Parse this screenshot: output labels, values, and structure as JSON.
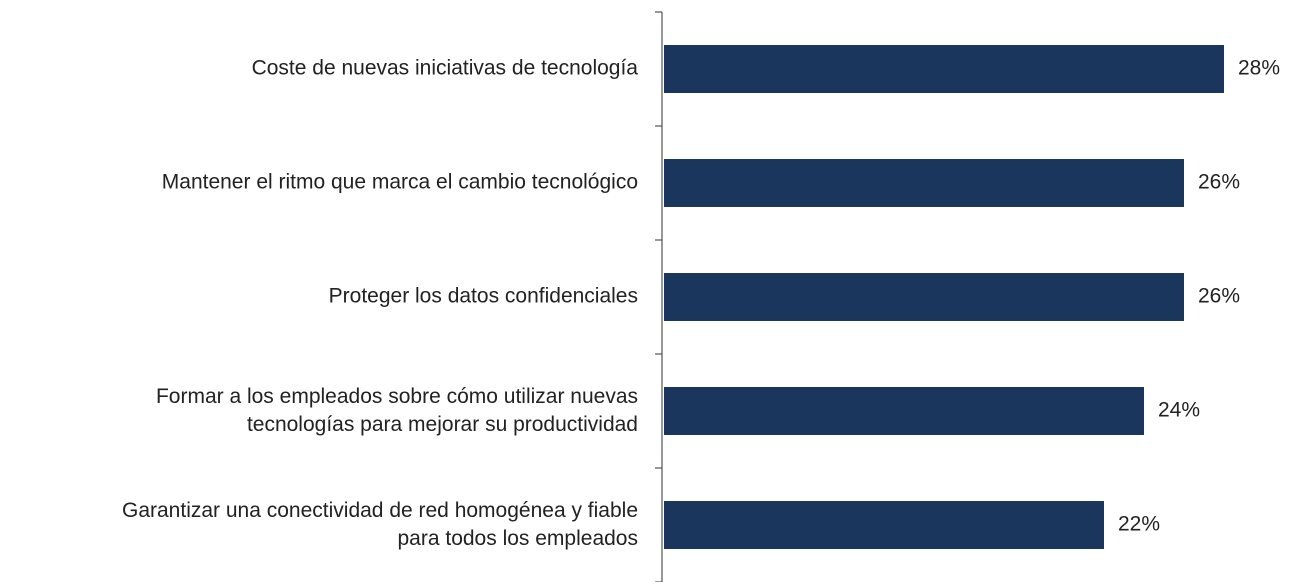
{
  "chart_data": {
    "type": "hbar",
    "categories": [
      "Coste de nuevas iniciativas de tecnología",
      "Mantener el ritmo que marca el cambio tecnológico",
      "Proteger los datos confidenciales",
      "Formar a los empleados sobre cómo utilizar nuevas\ntecnologías para mejorar su productividad",
      "Garantizar una conectividad de red homogénea y fiable\npara todos los empleados"
    ],
    "values": [
      28,
      26,
      26,
      24,
      22
    ],
    "value_labels": [
      "28%",
      "26%",
      "26%",
      "24%",
      "22%"
    ],
    "color": "#1b365d",
    "xlim": [
      0,
      30
    ]
  }
}
